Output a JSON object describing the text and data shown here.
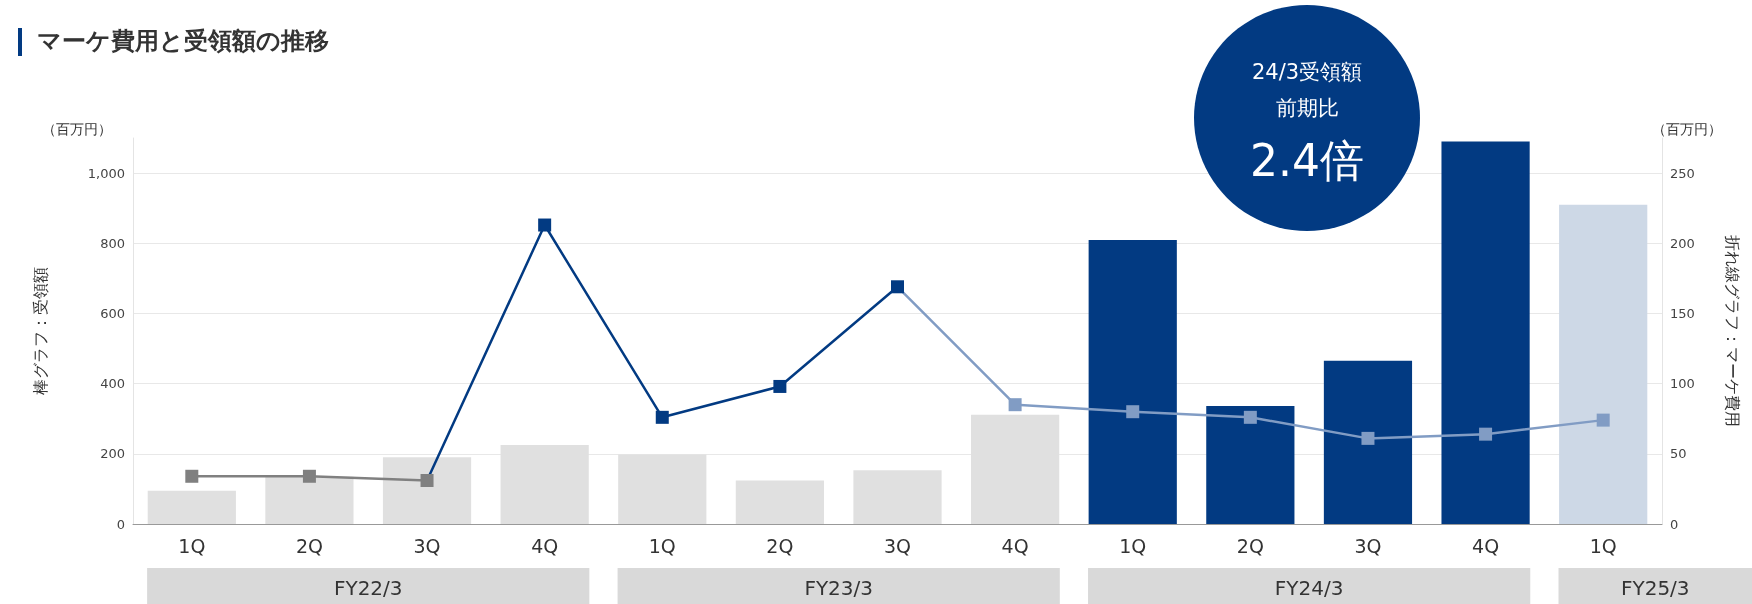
{
  "chart_data": {
    "type": "bar",
    "title": "マーケ費用と受領額の推移",
    "ylabel": "棒グラフ：受領額",
    "y2label": "折れ線グラフ：マーケ費用",
    "categories": [
      "1Q",
      "2Q",
      "3Q",
      "4Q",
      "1Q",
      "2Q",
      "3Q",
      "4Q",
      "1Q",
      "2Q",
      "3Q",
      "4Q",
      "1Q"
    ],
    "series": [
      {
        "values": [
          95,
          135,
          190,
          225,
          198,
          124,
          153,
          311,
          809,
          336,
          465,
          1090,
          910
        ],
        "colors": [
          "#e0e0e0",
          "#e0e0e0",
          "#e0e0e0",
          "#e0e0e0",
          "#e0e0e0",
          "#e0e0e0",
          "#e0e0e0",
          "#e0e0e0",
          "#023a82",
          "#023a82",
          "#023a82",
          "#023a82",
          "#cdd8e6"
        ]
      },
      {
        "type": "line",
        "axis": "y2",
        "values": [
          34,
          34,
          31,
          213,
          76,
          98,
          169,
          85,
          80,
          76,
          61,
          64,
          74
        ],
        "colors": [
          "#808080",
          "#808080",
          "#808080",
          "#023a82",
          "#023a82",
          "#023a82",
          "#023a82",
          "#819cc4",
          "#819cc4",
          "#819cc4",
          "#819cc4",
          "#819cc4",
          "#819cc4"
        ]
      }
    ],
    "ylim": [
      0,
      1100
    ],
    "yticks": [
      0,
      200,
      400,
      600,
      800,
      {
        "value": 1000,
        "label": "1,000"
      }
    ],
    "y2lim": [
      0,
      275
    ],
    "y2ticks": [
      0,
      50,
      100,
      150,
      200,
      250
    ],
    "grid": "y",
    "marker": "square",
    "annotations": [
      "24/3受領額",
      "前期比",
      "2.4倍",
      "（百万円）",
      "（百万円）",
      "FY22/3",
      "FY23/3",
      "FY24/3",
      "FY25/3"
    ]
  }
}
